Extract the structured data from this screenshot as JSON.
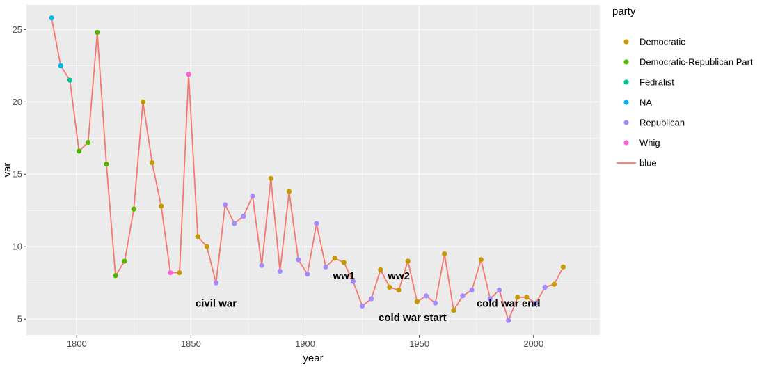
{
  "chart_data": {
    "type": "line",
    "title": "",
    "xlabel": "year",
    "ylabel": "var",
    "xlim": [
      1778,
      2029
    ],
    "ylim": [
      3.9,
      26.7
    ],
    "x_ticks": [
      1800,
      1850,
      1900,
      1950,
      2000
    ],
    "y_ticks": [
      5,
      10,
      15,
      20,
      25
    ],
    "grid": true,
    "line_color": "#F8766D",
    "legend": {
      "title": "party",
      "placement": "right",
      "entries": [
        {
          "key": "Democratic",
          "label": "Democratic",
          "color": "#C49A00",
          "kind": "point"
        },
        {
          "key": "Democratic-Republican Party",
          "label": "Democratic-Republican Part",
          "color": "#53B400",
          "kind": "point"
        },
        {
          "key": "Fedralist",
          "label": "Fedralist",
          "color": "#00C094",
          "kind": "point"
        },
        {
          "key": "NA",
          "label": "NA",
          "color": "#00B6EB",
          "kind": "point"
        },
        {
          "key": "Republican",
          "label": "Republican",
          "color": "#A58AFF",
          "kind": "point"
        },
        {
          "key": "Whig",
          "label": "Whig",
          "color": "#FB61D7",
          "kind": "point"
        },
        {
          "key": "blue",
          "label": "blue",
          "color": "#F8766D",
          "kind": "line"
        }
      ]
    },
    "points": [
      {
        "x": 1789,
        "y": 25.8,
        "party": "NA"
      },
      {
        "x": 1793,
        "y": 22.5,
        "party": "NA"
      },
      {
        "x": 1797,
        "y": 21.5,
        "party": "Fedralist"
      },
      {
        "x": 1801,
        "y": 16.6,
        "party": "Democratic-Republican Party"
      },
      {
        "x": 1805,
        "y": 17.2,
        "party": "Democratic-Republican Party"
      },
      {
        "x": 1809,
        "y": 24.8,
        "party": "Democratic-Republican Party"
      },
      {
        "x": 1813,
        "y": 15.7,
        "party": "Democratic-Republican Party"
      },
      {
        "x": 1817,
        "y": 8.0,
        "party": "Democratic-Republican Party"
      },
      {
        "x": 1821,
        "y": 9.0,
        "party": "Democratic-Republican Party"
      },
      {
        "x": 1825,
        "y": 12.6,
        "party": "Democratic-Republican Party"
      },
      {
        "x": 1829,
        "y": 20.0,
        "party": "Democratic"
      },
      {
        "x": 1833,
        "y": 15.8,
        "party": "Democratic"
      },
      {
        "x": 1837,
        "y": 12.8,
        "party": "Democratic"
      },
      {
        "x": 1841,
        "y": 8.2,
        "party": "Whig"
      },
      {
        "x": 1845,
        "y": 8.2,
        "party": "Democratic"
      },
      {
        "x": 1849,
        "y": 21.9,
        "party": "Whig"
      },
      {
        "x": 1853,
        "y": 10.7,
        "party": "Democratic"
      },
      {
        "x": 1857,
        "y": 10.0,
        "party": "Democratic"
      },
      {
        "x": 1861,
        "y": 7.5,
        "party": "Republican"
      },
      {
        "x": 1865,
        "y": 12.9,
        "party": "Republican"
      },
      {
        "x": 1869,
        "y": 11.6,
        "party": "Republican"
      },
      {
        "x": 1873,
        "y": 12.1,
        "party": "Republican"
      },
      {
        "x": 1877,
        "y": 13.5,
        "party": "Republican"
      },
      {
        "x": 1881,
        "y": 8.7,
        "party": "Republican"
      },
      {
        "x": 1885,
        "y": 14.7,
        "party": "Democratic"
      },
      {
        "x": 1889,
        "y": 8.3,
        "party": "Republican"
      },
      {
        "x": 1893,
        "y": 13.8,
        "party": "Democratic"
      },
      {
        "x": 1897,
        "y": 9.1,
        "party": "Republican"
      },
      {
        "x": 1901,
        "y": 8.1,
        "party": "Republican"
      },
      {
        "x": 1905,
        "y": 11.6,
        "party": "Republican"
      },
      {
        "x": 1909,
        "y": 8.6,
        "party": "Republican"
      },
      {
        "x": 1913,
        "y": 9.2,
        "party": "Democratic"
      },
      {
        "x": 1917,
        "y": 8.9,
        "party": "Democratic"
      },
      {
        "x": 1921,
        "y": 7.6,
        "party": "Republican"
      },
      {
        "x": 1925,
        "y": 5.9,
        "party": "Republican"
      },
      {
        "x": 1929,
        "y": 6.4,
        "party": "Republican"
      },
      {
        "x": 1933,
        "y": 8.4,
        "party": "Democratic"
      },
      {
        "x": 1937,
        "y": 7.2,
        "party": "Democratic"
      },
      {
        "x": 1941,
        "y": 7.0,
        "party": "Democratic"
      },
      {
        "x": 1945,
        "y": 9.0,
        "party": "Democratic"
      },
      {
        "x": 1949,
        "y": 6.2,
        "party": "Democratic"
      },
      {
        "x": 1953,
        "y": 6.6,
        "party": "Republican"
      },
      {
        "x": 1957,
        "y": 6.1,
        "party": "Republican"
      },
      {
        "x": 1961,
        "y": 9.5,
        "party": "Democratic"
      },
      {
        "x": 1965,
        "y": 5.6,
        "party": "Democratic"
      },
      {
        "x": 1969,
        "y": 6.6,
        "party": "Republican"
      },
      {
        "x": 1973,
        "y": 7.0,
        "party": "Republican"
      },
      {
        "x": 1977,
        "y": 9.1,
        "party": "Democratic"
      },
      {
        "x": 1981,
        "y": 6.4,
        "party": "Republican"
      },
      {
        "x": 1985,
        "y": 7.0,
        "party": "Republican"
      },
      {
        "x": 1989,
        "y": 4.9,
        "party": "Republican"
      },
      {
        "x": 1993,
        "y": 6.5,
        "party": "Democratic"
      },
      {
        "x": 1997,
        "y": 6.5,
        "party": "Democratic"
      },
      {
        "x": 2001,
        "y": 6.1,
        "party": "Republican"
      },
      {
        "x": 2005,
        "y": 7.2,
        "party": "Republican"
      },
      {
        "x": 2009,
        "y": 7.4,
        "party": "Democratic"
      },
      {
        "x": 2013,
        "y": 8.6,
        "party": "Democratic"
      }
    ],
    "annotations": [
      {
        "text": "civil war",
        "x": 1861,
        "y": 6.1
      },
      {
        "text": "ww1",
        "x": 1917,
        "y": 8.0
      },
      {
        "text": "ww2",
        "x": 1941,
        "y": 8.0
      },
      {
        "text": "cold war start",
        "x": 1947,
        "y": 5.1
      },
      {
        "text": "cold war end",
        "x": 1989,
        "y": 6.1
      }
    ],
    "colors": {
      "panel_background": "#EBEBEB",
      "grid_major": "#FFFFFF"
    }
  }
}
